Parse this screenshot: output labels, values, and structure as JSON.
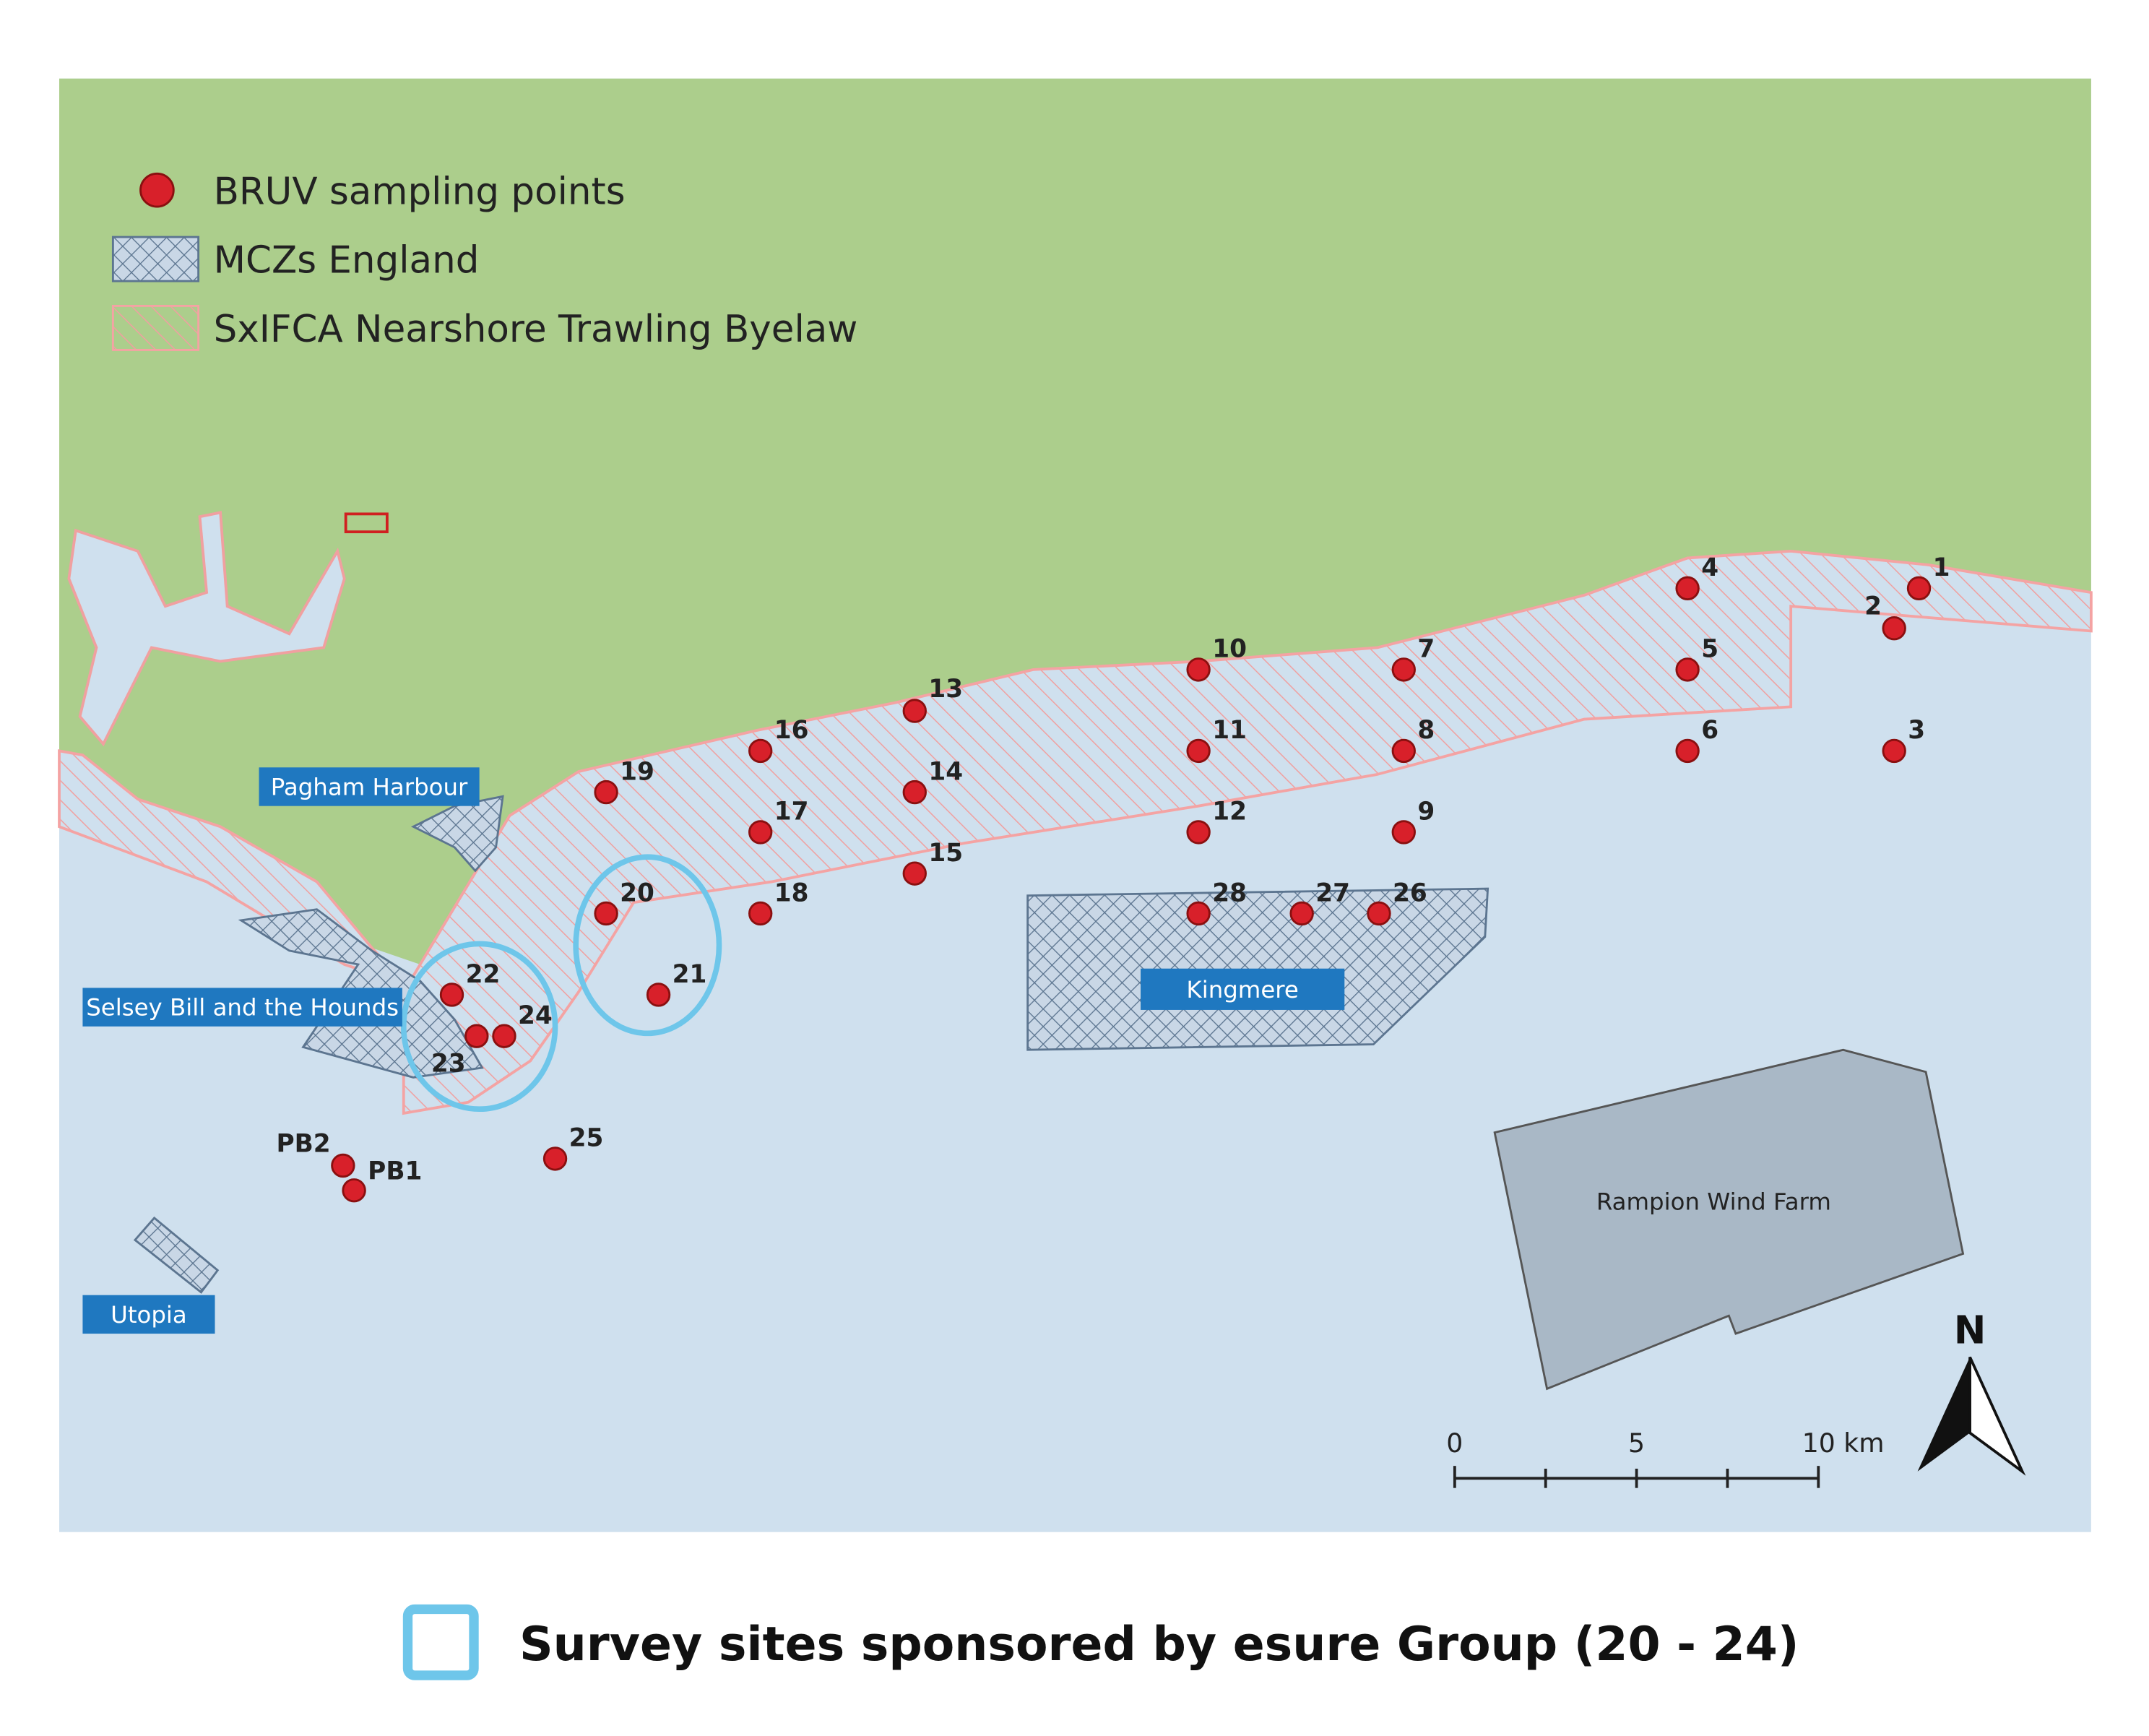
{
  "legend": {
    "items": [
      "BRUV sampling points",
      "MCZs England",
      "SxIFCA Nearshore Trawling Byelaw"
    ]
  },
  "areas": [
    "Pagham Harbour",
    "Selsey Bill and the Hounds",
    "Utopia",
    "Kingmere",
    "Rampion Wind Farm"
  ],
  "points": [
    "1",
    "2",
    "3",
    "4",
    "5",
    "6",
    "7",
    "8",
    "9",
    "10",
    "11",
    "12",
    "13",
    "14",
    "15",
    "16",
    "17",
    "18",
    "19",
    "20",
    "21",
    "22",
    "23",
    "24",
    "25",
    "26",
    "27",
    "28",
    "PB1",
    "PB2"
  ],
  "scale_bar": {
    "labels": [
      "0",
      "5",
      "10 km"
    ]
  },
  "north_arrow": "N",
  "caption": "Survey sites sponsored by esure Group (20 - 24)"
}
